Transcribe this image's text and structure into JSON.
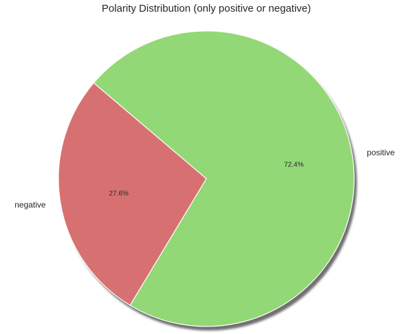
{
  "chart_data": {
    "type": "pie",
    "title": "Polarity Distribution (only positive or negative)",
    "slices": [
      {
        "label": "positive",
        "value": 72.4,
        "pct_label": "72.4%",
        "color": "#92d876"
      },
      {
        "label": "negative",
        "value": 27.6,
        "pct_label": "27.6%",
        "color": "#d77171"
      }
    ],
    "shadow": true,
    "edge_color": "#ffffff"
  }
}
